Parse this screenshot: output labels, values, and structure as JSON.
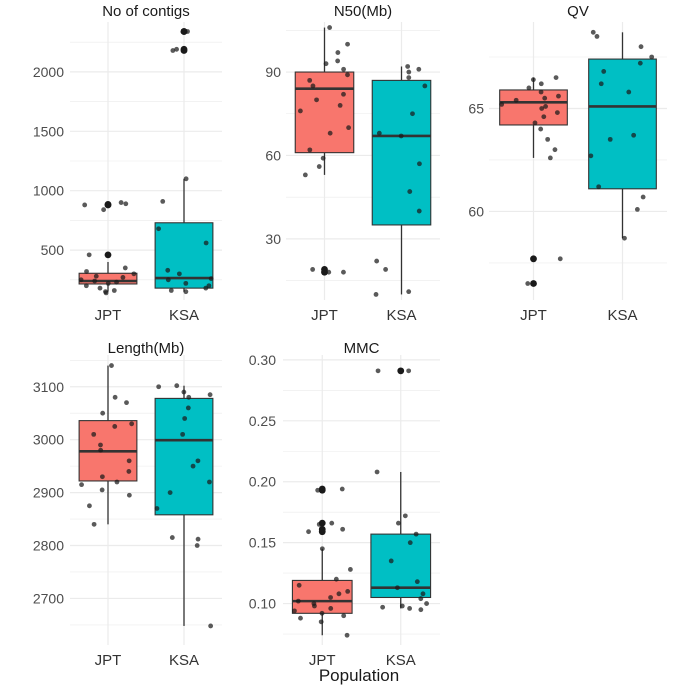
{
  "x_axis_title": "Population",
  "colors": {
    "JPT": "#F8766D",
    "KSA": "#00BFC4",
    "grid": "#ebebeb",
    "box_line": "#333333",
    "point": "#1a1a1a"
  },
  "chart_data": [
    {
      "type": "box",
      "title": "No of contigs",
      "categories": [
        "JPT",
        "KSA"
      ],
      "ylim": [
        80,
        2420
      ],
      "yticks": [
        500,
        1000,
        1500,
        2000
      ],
      "ytick_labels": [
        "500",
        "1000",
        "1500",
        "2000"
      ],
      "minor_ticks": [
        250,
        750,
        1250,
        1750,
        2250
      ],
      "boxes": [
        {
          "q1": 215,
          "median": 240,
          "q3": 305,
          "lower": 150,
          "upper": 400
        },
        {
          "q1": 180,
          "median": 265,
          "q3": 730,
          "lower": 150,
          "upper": 1100
        }
      ],
      "outliers": [
        [
          880,
          885,
          460
        ],
        [
          2180,
          2190,
          2340,
          2340
        ]
      ],
      "points": [
        [
          900,
          880,
          840,
          890,
          460,
          350,
          320,
          300,
          280,
          270,
          250,
          240,
          230,
          220,
          200,
          180,
          160,
          150,
          140
        ],
        [
          2340,
          2190,
          2180,
          1100,
          910,
          680,
          560,
          330,
          300,
          260,
          250,
          220,
          200,
          180,
          160,
          150
        ]
      ]
    },
    {
      "type": "box",
      "title": "N50(Mb)",
      "categories": [
        "JPT",
        "KSA"
      ],
      "ylim": [
        8,
        108
      ],
      "yticks": [
        30,
        60,
        90
      ],
      "ytick_labels": [
        "30",
        "60",
        "90"
      ],
      "minor_ticks": [
        15,
        45,
        75,
        105
      ],
      "boxes": [
        {
          "q1": 61,
          "median": 84,
          "q3": 90,
          "lower": 53,
          "upper": 106
        },
        {
          "q1": 35,
          "median": 67,
          "q3": 87,
          "lower": 10,
          "upper": 92
        }
      ],
      "outliers": [
        [
          18,
          19
        ],
        []
      ],
      "points": [
        [
          106,
          100,
          97,
          94,
          93,
          91,
          89,
          87,
          85,
          82,
          80,
          78,
          76,
          70,
          68,
          62,
          59,
          56,
          53,
          19,
          18,
          18
        ],
        [
          92,
          91,
          90,
          88,
          85,
          75,
          68,
          67,
          57,
          47,
          40,
          22,
          19,
          10,
          11
        ]
      ]
    },
    {
      "type": "box",
      "title": "QV",
      "categories": [
        "JPT",
        "KSA"
      ],
      "ylim": [
        55.7,
        69.2
      ],
      "yticks": [
        60,
        65
      ],
      "ytick_labels": [
        "60",
        "65"
      ],
      "minor_ticks": [
        57.5,
        62.5,
        67.5
      ],
      "boxes": [
        {
          "q1": 64.2,
          "median": 65.3,
          "q3": 65.9,
          "lower": 62.6,
          "upper": 66.5
        },
        {
          "q1": 61.1,
          "median": 65.1,
          "q3": 67.4,
          "lower": 58.7,
          "upper": 68.7
        }
      ],
      "outliers": [
        [
          57.7,
          56.5
        ],
        []
      ],
      "points": [
        [
          66.5,
          66.4,
          66.2,
          66.0,
          65.8,
          65.6,
          65.5,
          65.4,
          65.2,
          65.1,
          65.0,
          64.8,
          64.6,
          64.3,
          64.0,
          63.5,
          63.0,
          62.6,
          57.7,
          56.5,
          56.5
        ],
        [
          68.7,
          68.5,
          68.0,
          67.5,
          67.2,
          66.8,
          66.2,
          65.8,
          63.7,
          63.5,
          62.7,
          61.2,
          60.7,
          60.1,
          58.7
        ]
      ]
    },
    {
      "type": "box",
      "title": "Length(Mb)",
      "categories": [
        "JPT",
        "KSA"
      ],
      "ylim": [
        2612,
        3160
      ],
      "yticks": [
        2700,
        2800,
        2900,
        3000,
        3100
      ],
      "ytick_labels": [
        "2700",
        "2800",
        "2900",
        "3000",
        "3100"
      ],
      "minor_ticks": [
        2650,
        2750,
        2850,
        2950,
        3050,
        3150
      ],
      "boxes": [
        {
          "q1": 2922,
          "median": 2978,
          "q3": 3036,
          "lower": 2840,
          "upper": 3140
        },
        {
          "q1": 2858,
          "median": 2999,
          "q3": 3078,
          "lower": 2648,
          "upper": 3102
        }
      ],
      "outliers": [
        [],
        []
      ],
      "points": [
        [
          3140,
          3080,
          3070,
          3050,
          3030,
          3025,
          3010,
          2990,
          2980,
          2960,
          2940,
          2930,
          2920,
          2915,
          2905,
          2895,
          2875,
          2840
        ],
        [
          3102,
          3100,
          3090,
          3085,
          3080,
          3060,
          3040,
          3010,
          2960,
          2950,
          2920,
          2900,
          2870,
          2815,
          2812,
          2800,
          2648
        ]
      ]
    },
    {
      "type": "box",
      "title": "MMC",
      "categories": [
        "JPT",
        "KSA"
      ],
      "ylim": [
        0.066,
        0.304
      ],
      "yticks": [
        0.1,
        0.15,
        0.2,
        0.25,
        0.3
      ],
      "ytick_labels": [
        "0.10",
        "0.15",
        "0.20",
        "0.25",
        "0.30"
      ],
      "minor_ticks": [
        0.075,
        0.125,
        0.175,
        0.225,
        0.275
      ],
      "boxes": [
        {
          "q1": 0.092,
          "median": 0.102,
          "q3": 0.119,
          "lower": 0.074,
          "upper": 0.145
        },
        {
          "q1": 0.105,
          "median": 0.113,
          "q3": 0.157,
          "lower": 0.096,
          "upper": 0.208
        }
      ],
      "outliers": [
        [
          0.194,
          0.193,
          0.166,
          0.161,
          0.159
        ],
        [
          0.291
        ]
      ],
      "points": [
        [
          0.194,
          0.193,
          0.166,
          0.165,
          0.161,
          0.159,
          0.145,
          0.128,
          0.12,
          0.115,
          0.11,
          0.108,
          0.105,
          0.102,
          0.1,
          0.098,
          0.096,
          0.094,
          0.092,
          0.09,
          0.088,
          0.085,
          0.074
        ],
        [
          0.291,
          0.291,
          0.208,
          0.172,
          0.166,
          0.157,
          0.15,
          0.135,
          0.118,
          0.113,
          0.108,
          0.104,
          0.1,
          0.098,
          0.097,
          0.096,
          0.095
        ]
      ]
    }
  ]
}
